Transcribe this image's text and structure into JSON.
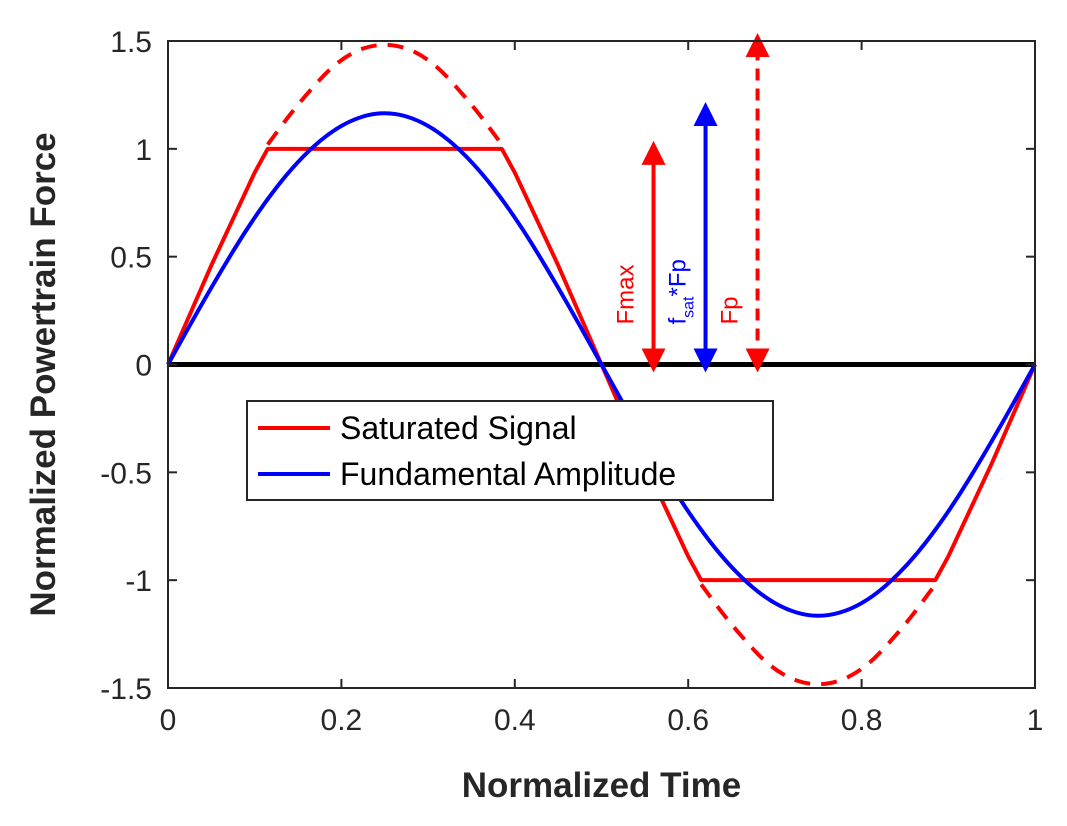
{
  "chart_data": {
    "type": "line",
    "xlabel": "Normalized Time",
    "ylabel": "Normalized Powertrain Force",
    "xlim": [
      0,
      1
    ],
    "ylim": [
      -1.5,
      1.5
    ],
    "x_ticks": [
      0,
      0.2,
      0.4,
      0.6,
      0.8,
      1
    ],
    "x_tick_labels": [
      "0",
      "0.2",
      "0.4",
      "0.6",
      "0.8",
      "1"
    ],
    "y_ticks": [
      -1.5,
      -1,
      -0.5,
      0,
      0.5,
      1,
      1.5
    ],
    "y_tick_labels": [
      "-1.5",
      "-1",
      "-0.5",
      "0",
      "0.5",
      "1",
      "1.5"
    ],
    "grid": false,
    "legend_position": "center-left",
    "series": [
      {
        "name": "Saturated Signal",
        "color": "#ff0000",
        "style": "solid",
        "x": [
          0,
          0.05,
          0.1,
          0.115,
          0.385,
          0.4,
          0.45,
          0.5,
          0.55,
          0.6,
          0.615,
          0.885,
          0.9,
          0.95,
          1
        ],
        "y": [
          0,
          0.46,
          0.89,
          1,
          1,
          0.89,
          0.46,
          0,
          -0.46,
          -0.89,
          -1,
          -1,
          -0.89,
          -0.46,
          0
        ]
      },
      {
        "name": "Fundamental Amplitude",
        "color": "#0000ff",
        "style": "solid",
        "x": [
          0,
          0.05,
          0.1,
          0.15,
          0.2,
          0.25,
          0.3,
          0.35,
          0.4,
          0.45,
          0.5,
          0.55,
          0.6,
          0.65,
          0.7,
          0.75,
          0.8,
          0.85,
          0.9,
          0.95,
          1
        ],
        "y": [
          0,
          0.36,
          0.69,
          0.95,
          1.12,
          1.18,
          1.12,
          0.95,
          0.69,
          0.36,
          0,
          -0.36,
          -0.69,
          -0.95,
          -1.12,
          -1.18,
          -1.12,
          -0.95,
          -0.69,
          -0.36,
          0
        ]
      },
      {
        "color": "#ff0000",
        "style": "dashed",
        "x": [
          0.115,
          0.15,
          0.2,
          0.25,
          0.3,
          0.35,
          0.385
        ],
        "y": [
          1.02,
          1.21,
          1.43,
          1.5,
          1.43,
          1.21,
          1.02
        ]
      },
      {
        "color": "#ff0000",
        "style": "dashed",
        "x": [
          0.615,
          0.65,
          0.7,
          0.75,
          0.8,
          0.85,
          0.885
        ],
        "y": [
          -1.02,
          -1.21,
          -1.43,
          -1.5,
          -1.43,
          -1.21,
          -1.02
        ]
      }
    ],
    "zero_line": {
      "y": 0,
      "color": "#000000"
    },
    "annotations": [
      {
        "label": "Fmax",
        "x": 0.56,
        "y_from": 0,
        "y_to": 1,
        "color": "#ff0000",
        "style": "solid"
      },
      {
        "label_main": "f",
        "label_sub": "sat",
        "label_tail": "*Fp",
        "x": 0.62,
        "y_from": 0,
        "y_to": 1.18,
        "color": "#0000ff",
        "style": "solid"
      },
      {
        "label": "Fp",
        "x": 0.68,
        "y_from": 0,
        "y_to": 1.5,
        "color": "#ff0000",
        "style": "dashed"
      }
    ]
  }
}
